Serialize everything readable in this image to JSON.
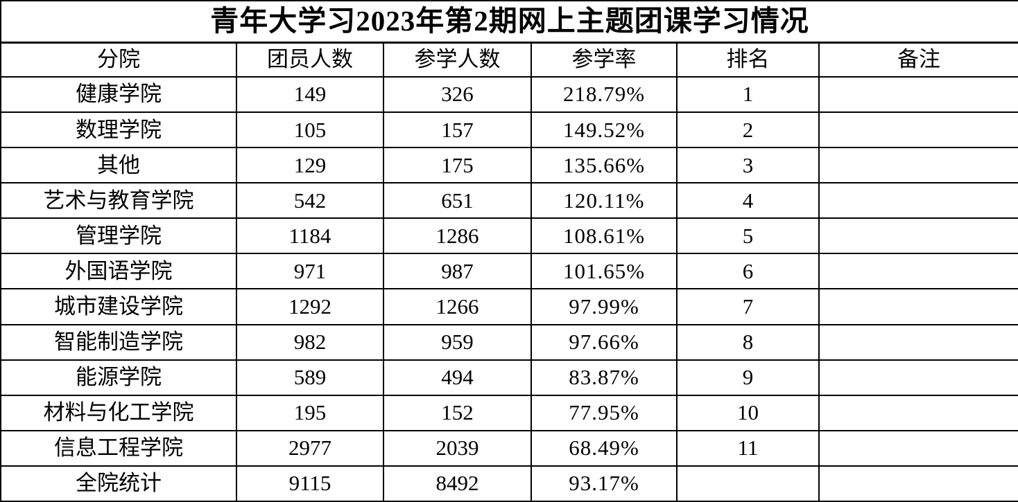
{
  "title": "青年大学习2023年第2期网上主题团课学习情况",
  "colors": {
    "background": "#ffffff",
    "text": "#000000",
    "grid": "#000000"
  },
  "table": {
    "headers": [
      "分院",
      "团员人数",
      "参学人数",
      "参学率",
      "排名",
      "备注"
    ],
    "rows": [
      [
        "健康学院",
        "149",
        "326",
        "218.79%",
        "1",
        ""
      ],
      [
        "数理学院",
        "105",
        "157",
        "149.52%",
        "2",
        ""
      ],
      [
        "其他",
        "129",
        "175",
        "135.66%",
        "3",
        ""
      ],
      [
        "艺术与教育学院",
        "542",
        "651",
        "120.11%",
        "4",
        ""
      ],
      [
        "管理学院",
        "1184",
        "1286",
        "108.61%",
        "5",
        ""
      ],
      [
        "外国语学院",
        "971",
        "987",
        "101.65%",
        "6",
        ""
      ],
      [
        "城市建设学院",
        "1292",
        "1266",
        "97.99%",
        "7",
        ""
      ],
      [
        "智能制造学院",
        "982",
        "959",
        "97.66%",
        "8",
        ""
      ],
      [
        "能源学院",
        "589",
        "494",
        "83.87%",
        "9",
        ""
      ],
      [
        "材料与化工学院",
        "195",
        "152",
        "77.95%",
        "10",
        ""
      ],
      [
        "信息工程学院",
        "2977",
        "2039",
        "68.49%",
        "11",
        ""
      ],
      [
        "全院统计",
        "9115",
        "8492",
        "93.17%",
        "",
        ""
      ]
    ]
  }
}
